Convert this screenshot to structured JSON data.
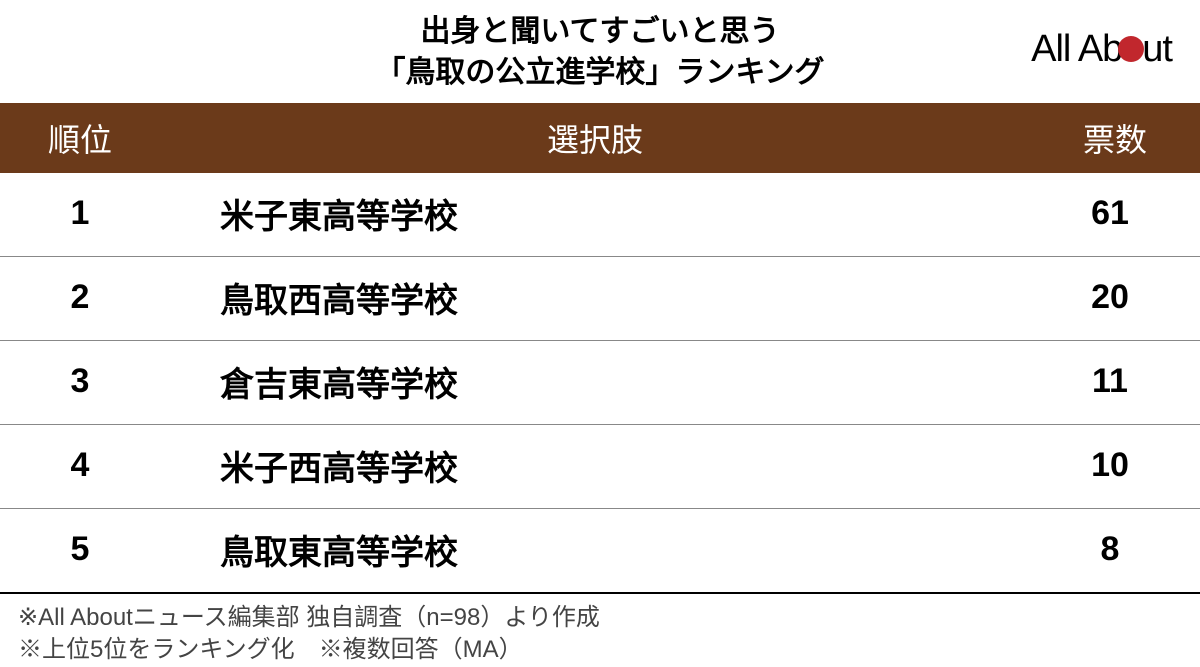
{
  "title": {
    "line1": "出身と聞いてすごいと思う",
    "line2": "「鳥取の公立進学校」ランキング"
  },
  "logo": {
    "part1": "All Ab",
    "part2": "ut"
  },
  "table": {
    "header_bg": "#6b3a1a",
    "header_fg": "#ffffff",
    "columns": {
      "rank": "順位",
      "name": "選択肢",
      "votes": "票数"
    },
    "rows": [
      {
        "rank": "1",
        "name": "米子東高等学校",
        "votes": "61"
      },
      {
        "rank": "2",
        "name": "鳥取西高等学校",
        "votes": "20"
      },
      {
        "rank": "3",
        "name": "倉吉東高等学校",
        "votes": "11"
      },
      {
        "rank": "4",
        "name": "米子西高等学校",
        "votes": "10"
      },
      {
        "rank": "5",
        "name": "鳥取東高等学校",
        "votes": "8"
      }
    ]
  },
  "footnotes": {
    "line1": "※All Aboutニュース編集部 独自調査（n=98）より作成",
    "line2": "※上位5位をランキング化　※複数回答（MA）"
  },
  "colors": {
    "accent_red": "#c1272d",
    "row_border": "#888888",
    "bottom_border": "#000000"
  }
}
